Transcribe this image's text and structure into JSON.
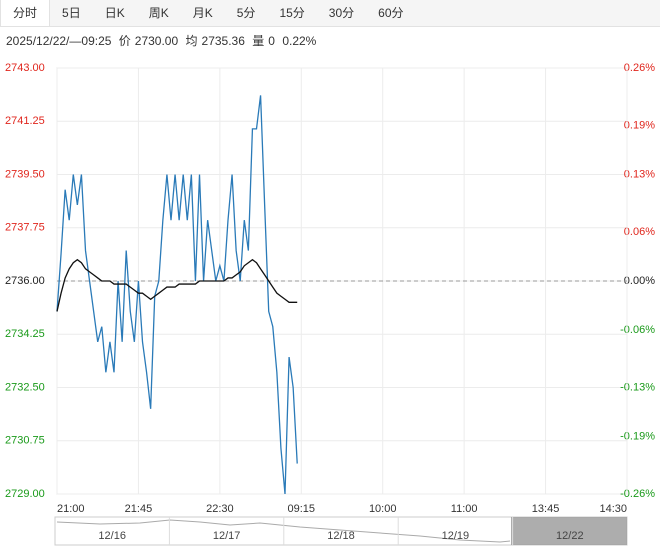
{
  "tabs": [
    "分时",
    "5日",
    "日K",
    "周K",
    "月K",
    "5分",
    "15分",
    "30分",
    "60分"
  ],
  "info": {
    "datetime": "2025/12/22/—09:25",
    "price_label": "价",
    "price": "2730.00",
    "avg_label": "均",
    "avg": "2735.36",
    "vol_label": "量",
    "vol": "0",
    "change": "0.22%"
  },
  "chart_data": {
    "type": "line",
    "x": [
      0,
      3,
      6,
      9,
      12,
      15,
      18,
      21,
      24,
      27,
      30,
      33,
      36,
      39,
      42,
      45,
      48,
      51,
      54,
      57,
      60,
      63,
      66,
      69,
      72,
      75,
      78,
      81,
      84,
      87,
      90,
      93,
      96,
      99,
      102,
      105,
      108,
      111,
      114,
      117,
      120,
      123,
      126,
      129,
      132,
      135,
      138,
      141,
      144,
      147,
      150,
      153,
      156,
      159,
      162,
      165,
      168,
      171,
      174,
      177
    ],
    "series": [
      {
        "color": "#2a7ab8",
        "values": [
          2735.0,
          2736.9,
          2739.0,
          2738.0,
          2739.5,
          2738.5,
          2739.5,
          2737.0,
          2736.0,
          2735.0,
          2734.0,
          2734.5,
          2733.0,
          2734.0,
          2733.0,
          2736.0,
          2734.0,
          2737.0,
          2735.0,
          2734.0,
          2736.0,
          2734.0,
          2733.0,
          2731.8,
          2735.5,
          2736.0,
          2738.0,
          2739.5,
          2738.0,
          2739.5,
          2738.0,
          2739.5,
          2738.0,
          2739.5,
          2736.0,
          2739.5,
          2736.0,
          2738.0,
          2737.0,
          2736.0,
          2736.5,
          2736.0,
          2738.0,
          2739.5,
          2737.0,
          2736.0,
          2738.0,
          2737.0,
          2741.0,
          2741.0,
          2742.1,
          2738.5,
          2735.0,
          2734.5,
          2733.0,
          2730.5,
          2729.0,
          2733.5,
          2732.5,
          2730.0
        ]
      },
      {
        "color": "#111111",
        "values": [
          2735.0,
          2735.6,
          2736.1,
          2736.4,
          2736.6,
          2736.7,
          2736.6,
          2736.4,
          2736.3,
          2736.2,
          2736.1,
          2736.0,
          2736.0,
          2736.0,
          2735.9,
          2735.9,
          2735.9,
          2735.9,
          2735.8,
          2735.7,
          2735.6,
          2735.6,
          2735.5,
          2735.4,
          2735.5,
          2735.6,
          2735.7,
          2735.8,
          2735.8,
          2735.8,
          2735.9,
          2735.9,
          2735.9,
          2735.9,
          2735.9,
          2736.0,
          2736.0,
          2736.0,
          2736.0,
          2736.0,
          2736.0,
          2736.0,
          2736.1,
          2736.1,
          2736.2,
          2736.3,
          2736.5,
          2736.6,
          2736.7,
          2736.6,
          2736.4,
          2736.2,
          2736.0,
          2735.8,
          2735.6,
          2735.5,
          2735.4,
          2735.3,
          2735.3,
          2735.3
        ]
      }
    ],
    "xlim": [
      0,
      420
    ],
    "xticks": [
      {
        "value": 0,
        "label": "21:00"
      },
      {
        "value": 60,
        "label": "21:45"
      },
      {
        "value": 120,
        "label": "22:30"
      },
      {
        "value": 180,
        "label": "09:15"
      },
      {
        "value": 240,
        "label": "10:00"
      },
      {
        "value": 300,
        "label": "11:00"
      },
      {
        "value": 360,
        "label": "13:45"
      },
      {
        "value": 420,
        "label": "14:30"
      }
    ],
    "ylim": [
      2729,
      2743
    ],
    "yticks": [
      {
        "value": 2743,
        "label": "2743.00"
      },
      {
        "value": 2741.25,
        "label": "2741.25"
      },
      {
        "value": 2739.5,
        "label": "2739.50"
      },
      {
        "value": 2737.75,
        "label": "2737.75"
      },
      {
        "value": 2736,
        "label": "2736.00"
      },
      {
        "value": 2734.25,
        "label": "2734.25"
      },
      {
        "value": 2732.5,
        "label": "2732.50"
      },
      {
        "value": 2730.75,
        "label": "2730.75"
      },
      {
        "value": 2729,
        "label": "2729.00"
      }
    ],
    "y2lim": [
      -0.26,
      0.26
    ],
    "y2ticks": [
      {
        "value": 0.26,
        "label": "0.26%"
      },
      {
        "value": 0.19,
        "label": "0.19%"
      },
      {
        "value": 0.13,
        "label": "0.13%"
      },
      {
        "value": 0.06,
        "label": "0.06%"
      },
      {
        "value": 0,
        "label": "0.00%"
      },
      {
        "value": -0.06,
        "label": "-0.06%"
      },
      {
        "value": -0.13,
        "label": "-0.13%"
      },
      {
        "value": -0.19,
        "label": "-0.19%"
      },
      {
        "value": -0.26,
        "label": "-0.26%"
      }
    ],
    "reference_line": 2736,
    "grid": true,
    "navigator_labels": [
      "12/16",
      "12/17",
      "12/18",
      "12/19",
      "12/22"
    ]
  }
}
